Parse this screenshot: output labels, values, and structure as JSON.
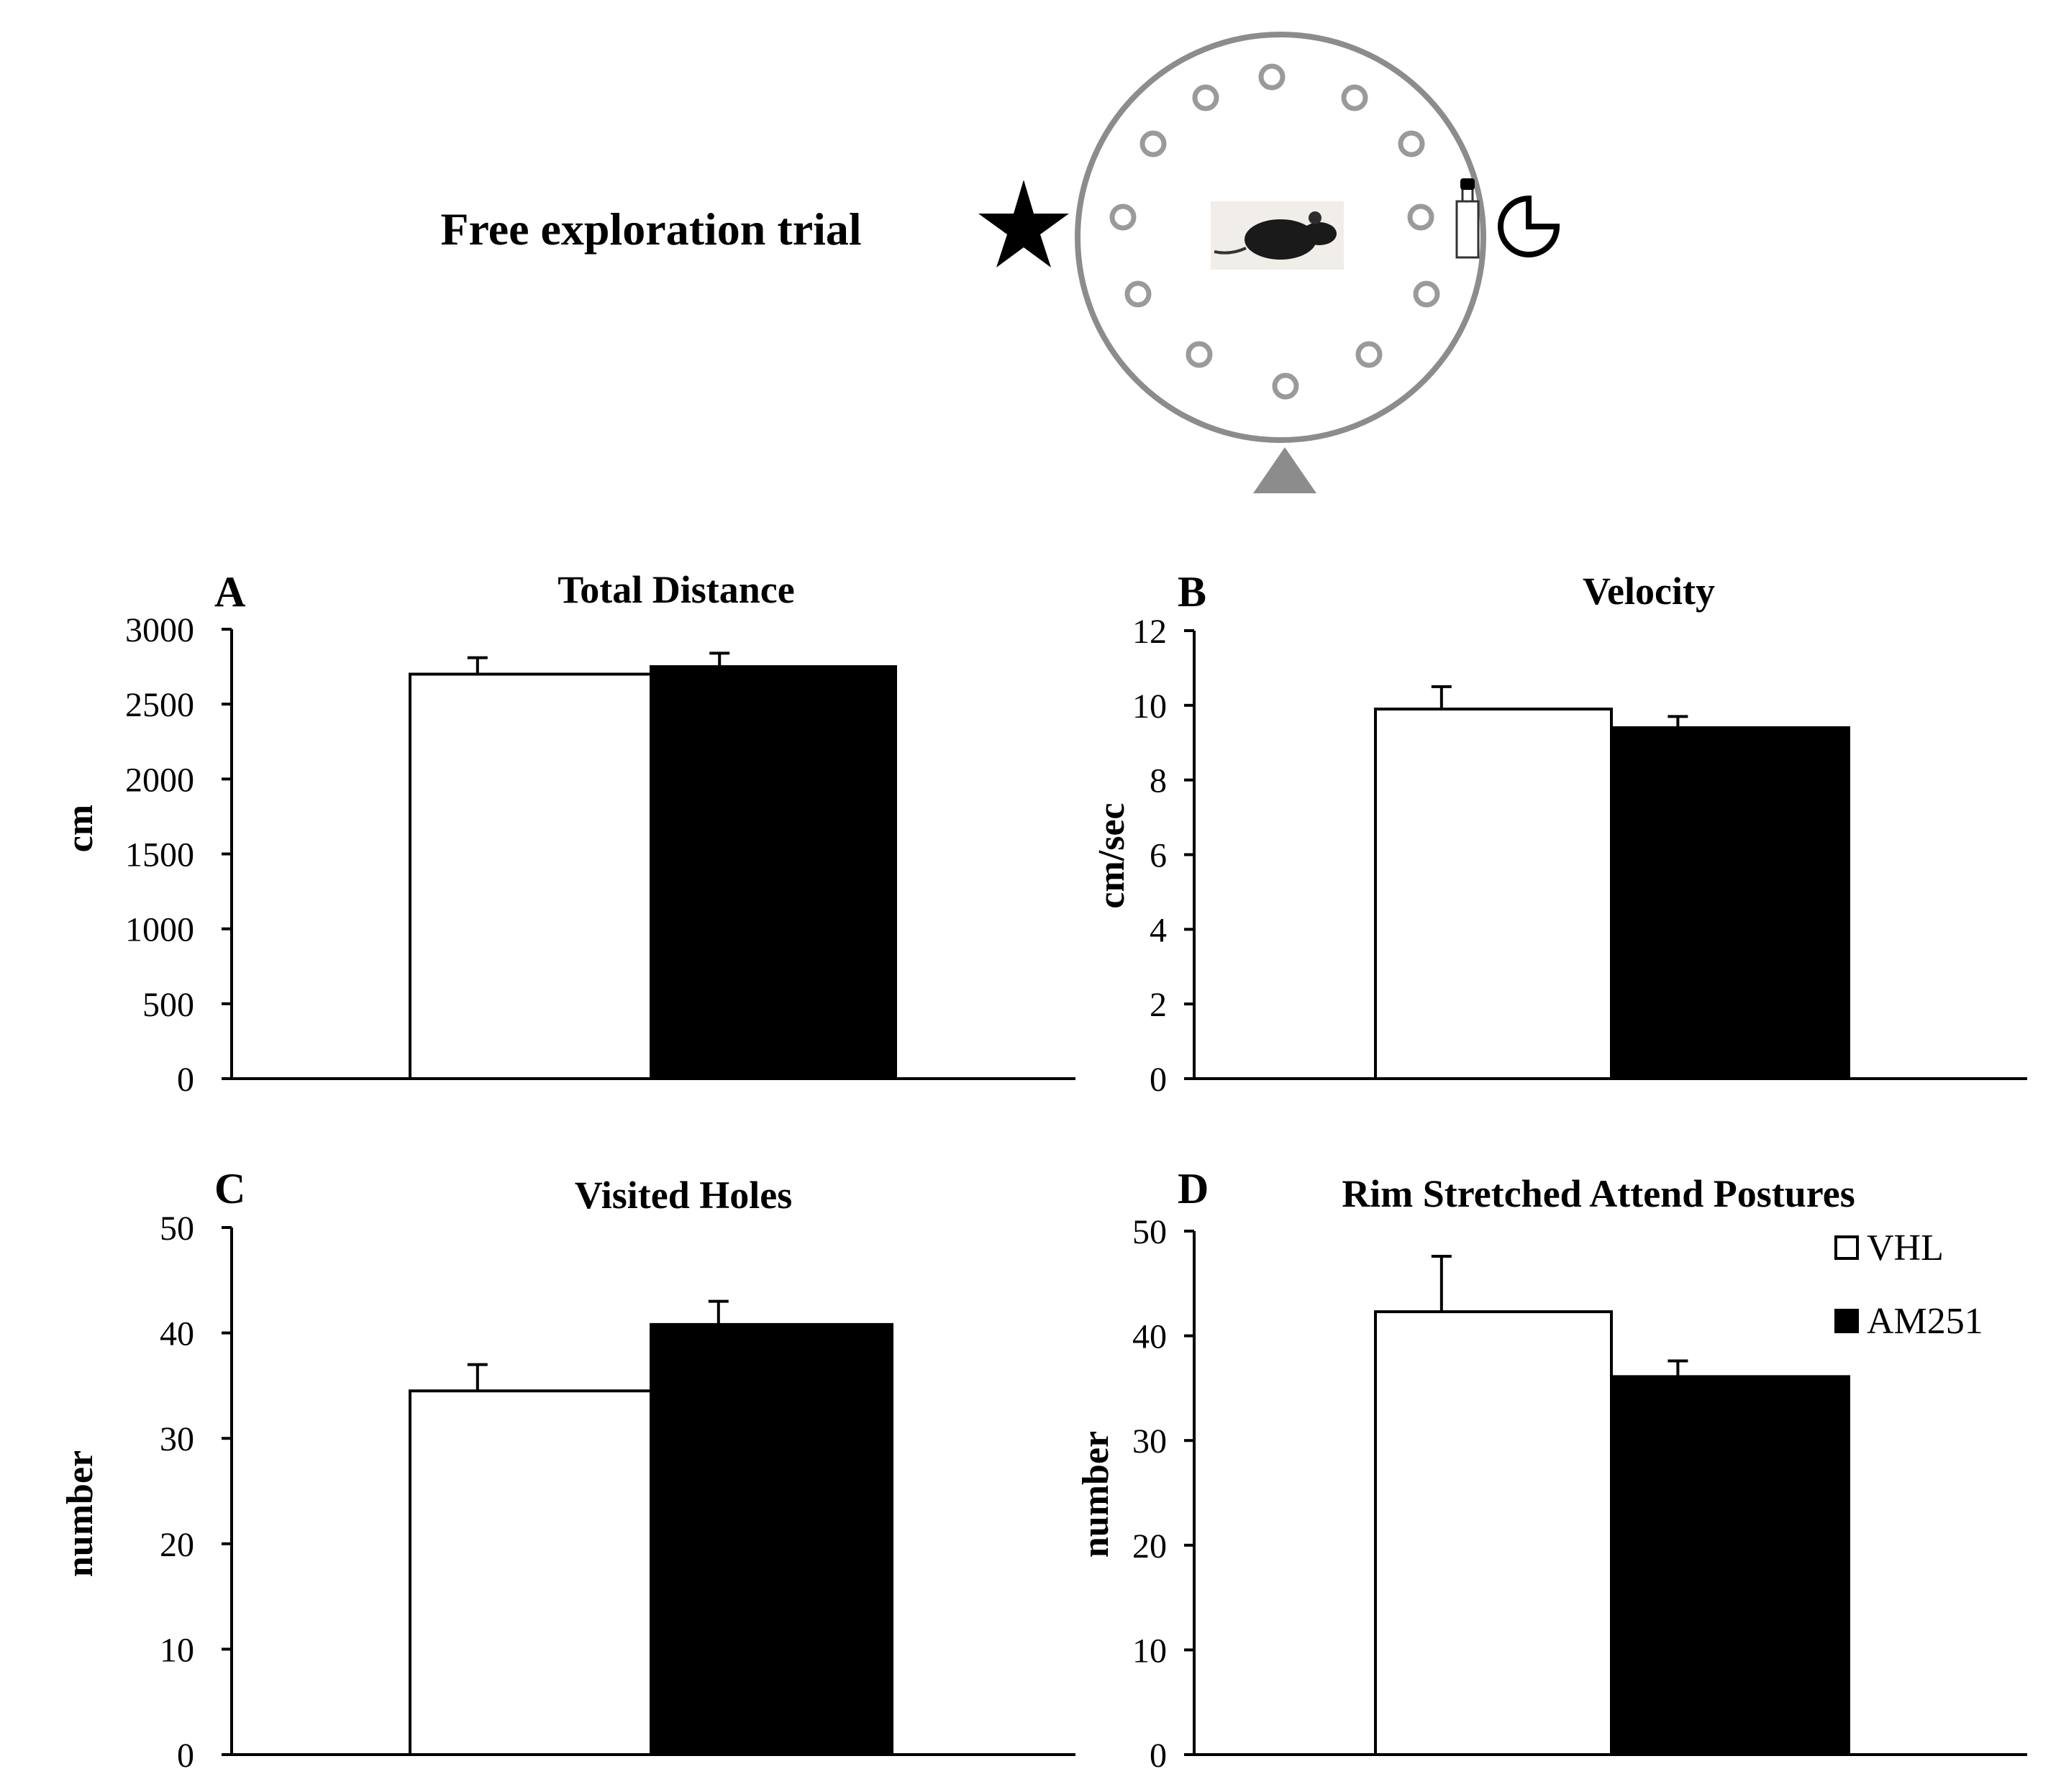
{
  "schematic": {
    "title": "Free exploration trial",
    "colors": {
      "arena_ring": "#8c8c8c",
      "holes": "#9a9a9a",
      "start_marker": "#8c8c8c",
      "mouse": "#1a1a1a"
    },
    "icons": [
      "star-icon",
      "bottle-icon",
      "pacman-icon",
      "mouse-icon",
      "start-triangle-icon"
    ]
  },
  "legend": [
    {
      "label": "VHL",
      "color": "#ffffff"
    },
    {
      "label": "AM251",
      "color": "#000000"
    }
  ],
  "chart_data": [
    {
      "panel": "A",
      "type": "bar",
      "title": "Total Distance",
      "ylabel": "cm",
      "ylim": [
        0,
        3000
      ],
      "yticks": [
        0,
        500,
        1000,
        1500,
        2000,
        2500,
        3000
      ],
      "series": [
        {
          "name": "VHL",
          "color": "#ffffff",
          "values": [
            2700
          ],
          "error": [
            110
          ]
        },
        {
          "name": "AM251",
          "color": "#000000",
          "values": [
            2750
          ],
          "error": [
            90
          ]
        }
      ]
    },
    {
      "panel": "B",
      "type": "bar",
      "title": "Velocity",
      "ylabel": "cm/sec",
      "ylim": [
        0,
        12
      ],
      "yticks": [
        0,
        2,
        4,
        6,
        8,
        10,
        12
      ],
      "series": [
        {
          "name": "VHL",
          "color": "#ffffff",
          "values": [
            9.9
          ],
          "error": [
            0.6
          ]
        },
        {
          "name": "AM251",
          "color": "#000000",
          "values": [
            9.4
          ],
          "error": [
            0.3
          ]
        }
      ]
    },
    {
      "panel": "C",
      "type": "bar",
      "title": "Visited Holes",
      "ylabel": "number",
      "ylim": [
        0,
        50
      ],
      "yticks": [
        0,
        10,
        20,
        30,
        40,
        50
      ],
      "series": [
        {
          "name": "VHL",
          "color": "#ffffff",
          "values": [
            34.5
          ],
          "error": [
            2.5
          ]
        },
        {
          "name": "AM251",
          "color": "#000000",
          "values": [
            40.8
          ],
          "error": [
            2.2
          ]
        }
      ]
    },
    {
      "panel": "D",
      "type": "bar",
      "title": "Rim Stretched Attend Postures",
      "ylabel": "number",
      "ylim": [
        0,
        50
      ],
      "yticks": [
        0,
        10,
        20,
        30,
        40,
        50
      ],
      "legend_position": "top-right",
      "series": [
        {
          "name": "VHL",
          "color": "#ffffff",
          "values": [
            42.3
          ],
          "error": [
            5.3
          ]
        },
        {
          "name": "AM251",
          "color": "#000000",
          "values": [
            36.1
          ],
          "error": [
            1.5
          ]
        }
      ]
    }
  ]
}
